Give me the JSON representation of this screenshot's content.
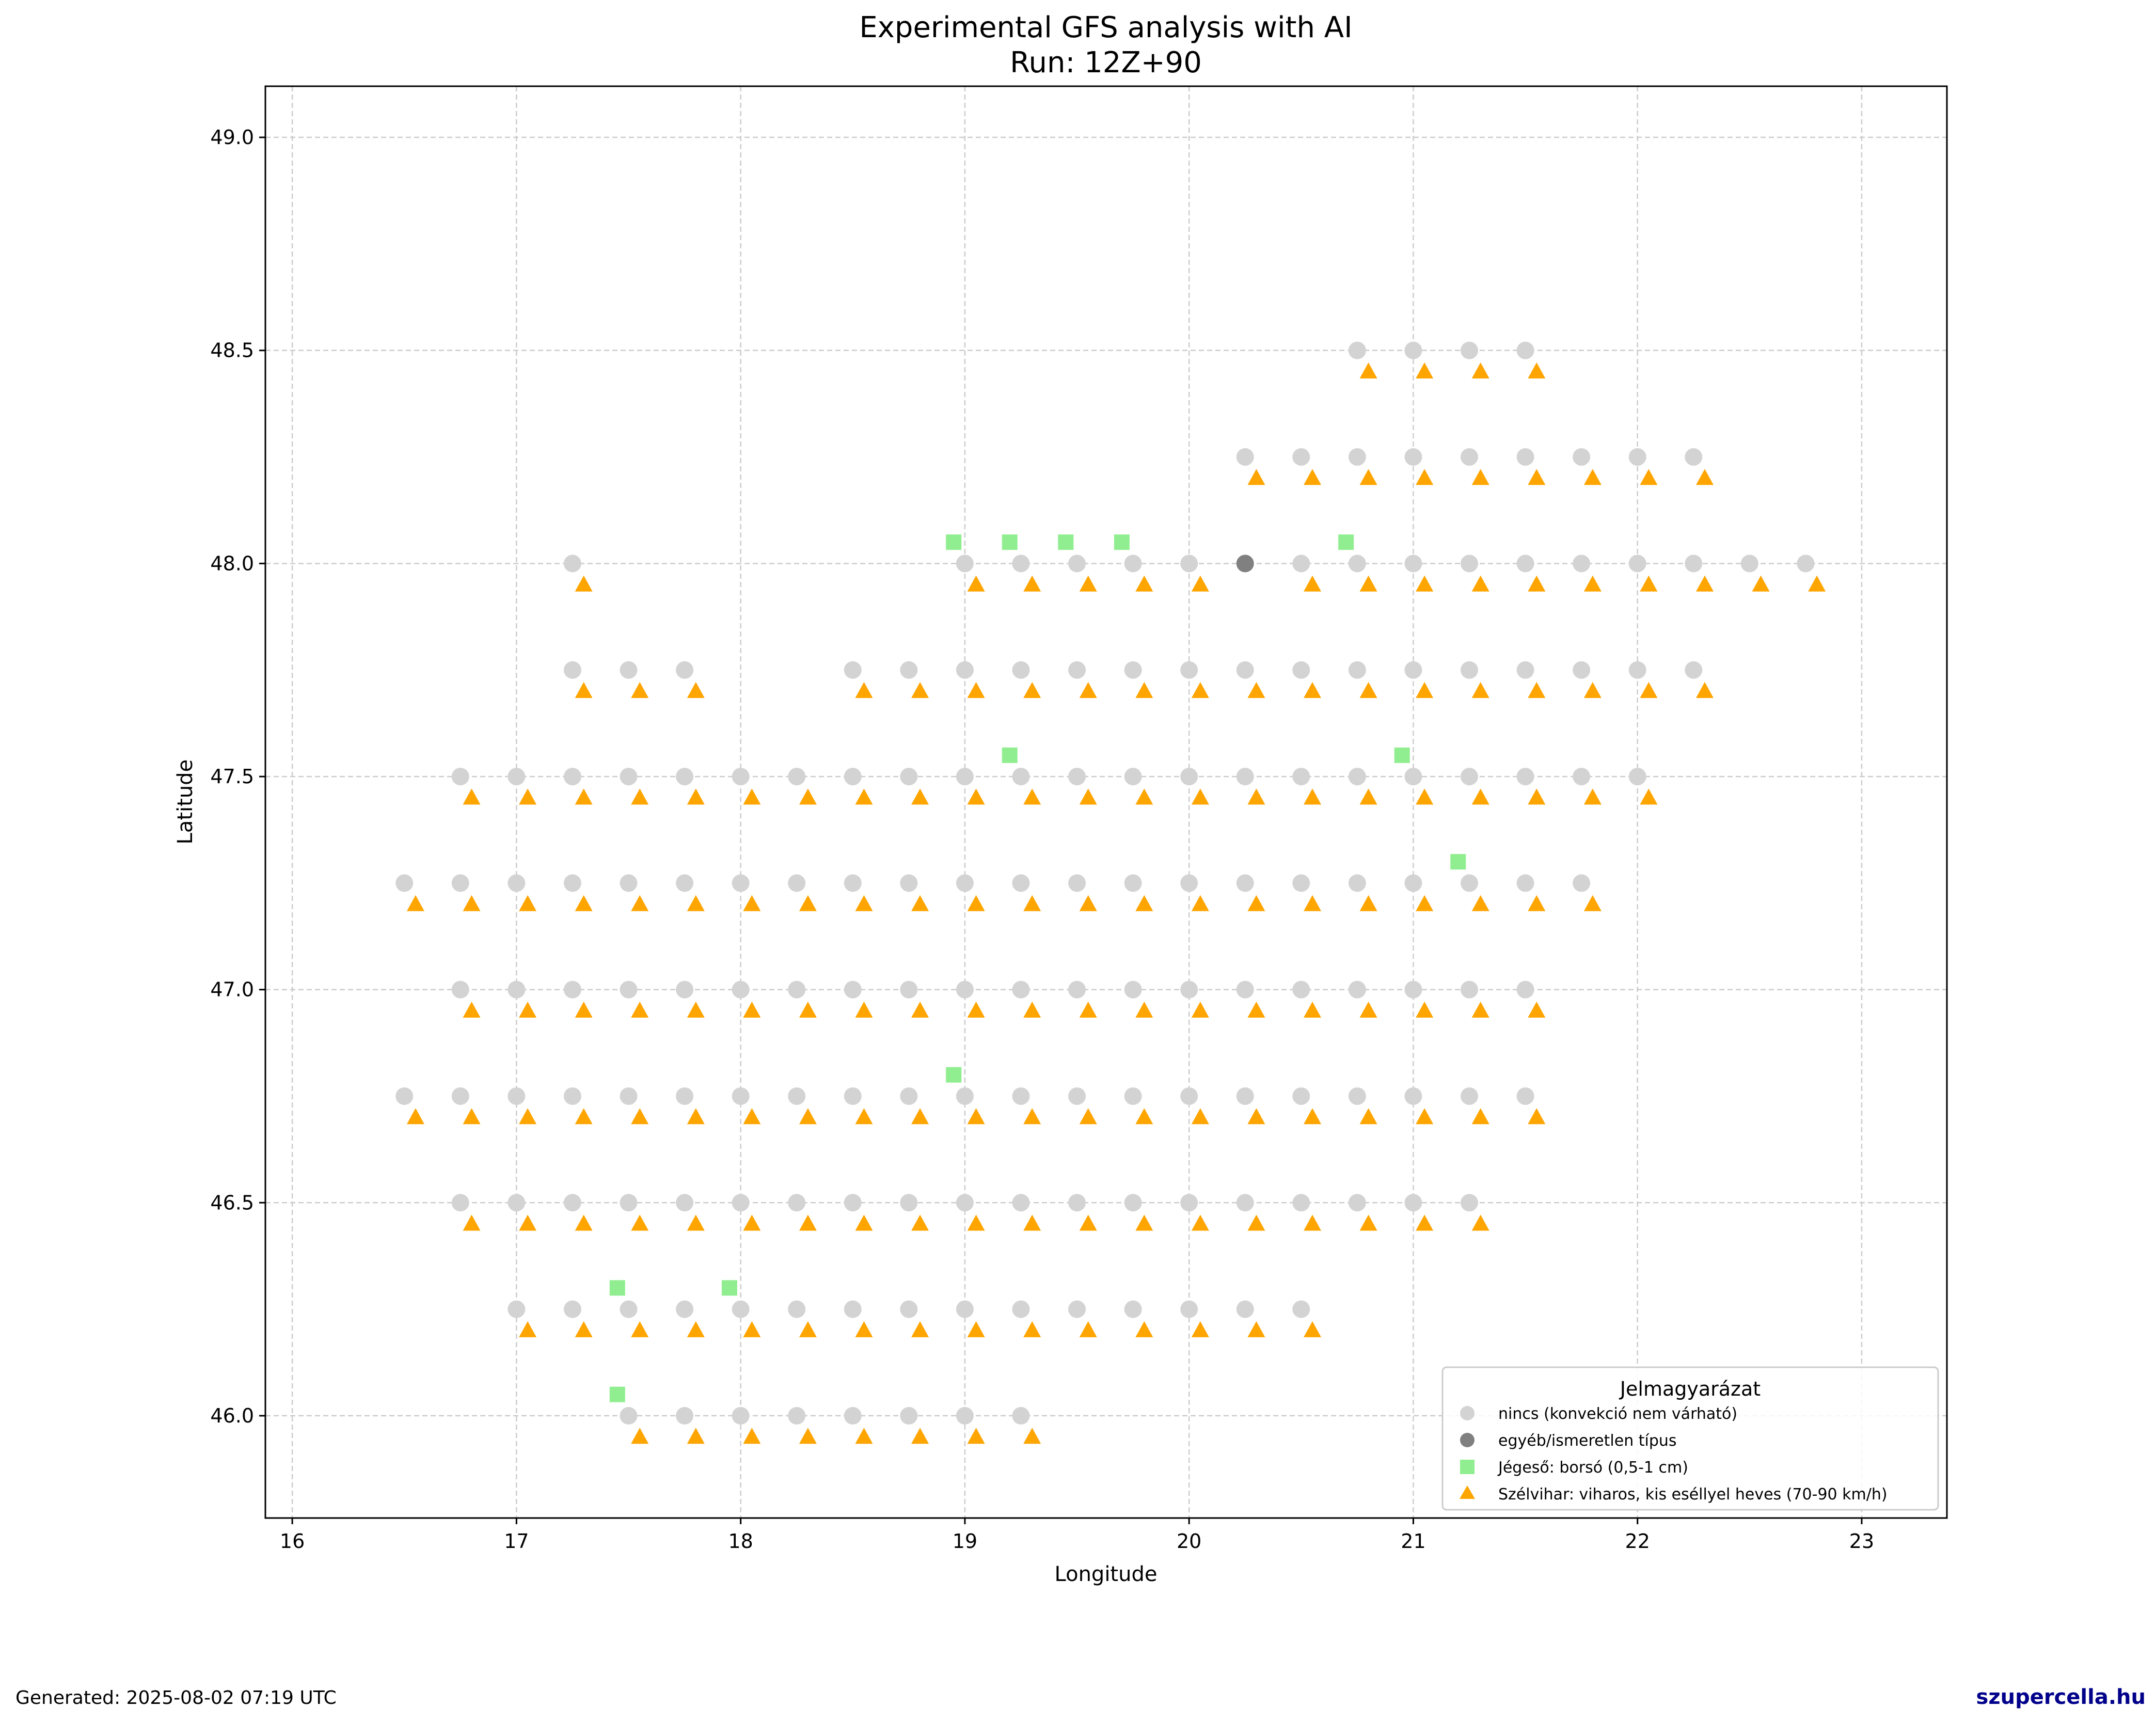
{
  "title_line1": "Experimental GFS analysis with AI",
  "title_line2": "Run: 12Z+90",
  "footer": {
    "generated": "Generated: 2025-08-02 07:19 UTC",
    "brand": "szupercella.hu"
  },
  "colors": {
    "nincs": "#d3d3d3",
    "egyeb": "#808080",
    "jeges": "#90ee90",
    "szel": "#ffa500",
    "grid": "#cccccc"
  },
  "chart_data": {
    "type": "scatter",
    "title": "Experimental GFS analysis with AI\nRun: 12Z+90",
    "xlabel": "Longitude",
    "ylabel": "Latitude",
    "xlim": [
      15.88,
      23.38
    ],
    "ylim": [
      45.76,
      49.12
    ],
    "xticks": [
      "16",
      "17",
      "18",
      "19",
      "20",
      "21",
      "22",
      "23"
    ],
    "yticks": [
      "46.0",
      "46.5",
      "47.0",
      "47.5",
      "48.0",
      "48.5",
      "49.0"
    ],
    "grid": true,
    "legend": {
      "title": "Jelmagyarázat",
      "placement": "bottom-right",
      "entries": [
        "nincs (konvekció nem várható)",
        "egyéb/ismeretlen típus",
        "Jégeső: borsó (0,5-1 cm)",
        "Szélvihar: viharos, kis eséllyel heves (70-90 km/h)"
      ]
    },
    "series": [
      {
        "name": "nincs (konvekció nem várható)",
        "marker": "circle",
        "rows": [
          {
            "lat": 48.5,
            "lons": [
              20.75,
              21.0,
              21.25,
              21.5
            ]
          },
          {
            "lat": 48.25,
            "lons": [
              20.25,
              20.5,
              20.75,
              21.0,
              21.25,
              21.5,
              21.75,
              22.0,
              22.25
            ]
          },
          {
            "lat": 48.0,
            "lons": [
              17.25,
              19.0,
              19.25,
              19.5,
              19.75,
              20.0,
              20.5,
              20.75,
              21.0,
              21.25,
              21.5,
              21.75,
              22.0,
              22.25,
              22.5,
              22.75
            ]
          },
          {
            "lat": 47.75,
            "lons": [
              17.25,
              17.5,
              17.75,
              18.5,
              18.75,
              19.0,
              19.25,
              19.5,
              19.75,
              20.0,
              20.25,
              20.5,
              20.75,
              21.0,
              21.25,
              21.5,
              21.75,
              22.0,
              22.25
            ]
          },
          {
            "lat": 47.5,
            "lons": [
              16.75,
              17.0,
              17.25,
              17.5,
              17.75,
              18.0,
              18.25,
              18.5,
              18.75,
              19.0,
              19.25,
              19.5,
              19.75,
              20.0,
              20.25,
              20.5,
              20.75,
              21.0,
              21.25,
              21.5,
              21.75,
              22.0
            ]
          },
          {
            "lat": 47.25,
            "lons": [
              16.5,
              16.75,
              17.0,
              17.25,
              17.5,
              17.75,
              18.0,
              18.25,
              18.5,
              18.75,
              19.0,
              19.25,
              19.5,
              19.75,
              20.0,
              20.25,
              20.5,
              20.75,
              21.0,
              21.25,
              21.5,
              21.75
            ]
          },
          {
            "lat": 47.0,
            "lons": [
              16.75,
              17.0,
              17.25,
              17.5,
              17.75,
              18.0,
              18.25,
              18.5,
              18.75,
              19.0,
              19.25,
              19.5,
              19.75,
              20.0,
              20.25,
              20.5,
              20.75,
              21.0,
              21.25,
              21.5
            ]
          },
          {
            "lat": 46.75,
            "lons": [
              16.5,
              16.75,
              17.0,
              17.25,
              17.5,
              17.75,
              18.0,
              18.25,
              18.5,
              18.75,
              19.0,
              19.25,
              19.5,
              19.75,
              20.0,
              20.25,
              20.5,
              20.75,
              21.0,
              21.25,
              21.5
            ]
          },
          {
            "lat": 46.5,
            "lons": [
              16.75,
              17.0,
              17.25,
              17.5,
              17.75,
              18.0,
              18.25,
              18.5,
              18.75,
              19.0,
              19.25,
              19.5,
              19.75,
              20.0,
              20.25,
              20.5,
              20.75,
              21.0,
              21.25
            ]
          },
          {
            "lat": 46.25,
            "lons": [
              17.0,
              17.25,
              17.5,
              17.75,
              18.0,
              18.25,
              18.5,
              18.75,
              19.0,
              19.25,
              19.5,
              19.75,
              20.0,
              20.25,
              20.5
            ]
          },
          {
            "lat": 46.0,
            "lons": [
              17.5,
              17.75,
              18.0,
              18.25,
              18.5,
              18.75,
              19.0,
              19.25
            ]
          }
        ]
      },
      {
        "name": "egyéb/ismeretlen típus",
        "marker": "circle",
        "rows": [
          {
            "lat": 48.0,
            "lons": [
              20.25
            ]
          }
        ]
      },
      {
        "name": "Jégeső: borsó (0,5-1 cm)",
        "marker": "square",
        "rows": [
          {
            "lat": 48.05,
            "lons": [
              18.95,
              19.2,
              19.45,
              19.7,
              20.7
            ]
          },
          {
            "lat": 47.55,
            "lons": [
              19.2,
              20.95
            ]
          },
          {
            "lat": 47.3,
            "lons": [
              21.2
            ]
          },
          {
            "lat": 46.8,
            "lons": [
              18.95
            ]
          },
          {
            "lat": 46.3,
            "lons": [
              17.45,
              17.95
            ]
          },
          {
            "lat": 46.05,
            "lons": [
              17.45
            ]
          }
        ]
      },
      {
        "name": "Szélvihar: viharos, kis eséllyel heves (70-90 km/h)",
        "marker": "triangle",
        "rows": [
          {
            "lat": 48.45,
            "lons": [
              20.8,
              21.05,
              21.3,
              21.55
            ]
          },
          {
            "lat": 48.2,
            "lons": [
              20.3,
              20.55,
              20.8,
              21.05,
              21.3,
              21.55,
              21.8,
              22.05,
              22.3
            ]
          },
          {
            "lat": 47.95,
            "lons": [
              17.3,
              19.05,
              19.3,
              19.55,
              19.8,
              20.05,
              20.55,
              20.8,
              21.05,
              21.3,
              21.55,
              21.8,
              22.05,
              22.3,
              22.55,
              22.8
            ]
          },
          {
            "lat": 47.7,
            "lons": [
              17.3,
              17.55,
              17.8,
              18.55,
              18.8,
              19.05,
              19.3,
              19.55,
              19.8,
              20.05,
              20.3,
              20.55,
              20.8,
              21.05,
              21.3,
              21.55,
              21.8,
              22.05,
              22.3
            ]
          },
          {
            "lat": 47.45,
            "lons": [
              16.8,
              17.05,
              17.3,
              17.55,
              17.8,
              18.05,
              18.3,
              18.55,
              18.8,
              19.05,
              19.3,
              19.55,
              19.8,
              20.05,
              20.3,
              20.55,
              20.8,
              21.05,
              21.3,
              21.55,
              21.8,
              22.05
            ]
          },
          {
            "lat": 47.2,
            "lons": [
              16.55,
              16.8,
              17.05,
              17.3,
              17.55,
              17.8,
              18.05,
              18.3,
              18.55,
              18.8,
              19.05,
              19.3,
              19.55,
              19.8,
              20.05,
              20.3,
              20.55,
              20.8,
              21.05,
              21.3,
              21.55,
              21.8
            ]
          },
          {
            "lat": 46.95,
            "lons": [
              16.8,
              17.05,
              17.3,
              17.55,
              17.8,
              18.05,
              18.3,
              18.55,
              18.8,
              19.05,
              19.3,
              19.55,
              19.8,
              20.05,
              20.3,
              20.55,
              20.8,
              21.05,
              21.3,
              21.55
            ]
          },
          {
            "lat": 46.7,
            "lons": [
              16.55,
              16.8,
              17.05,
              17.3,
              17.55,
              17.8,
              18.05,
              18.3,
              18.55,
              18.8,
              19.05,
              19.3,
              19.55,
              19.8,
              20.05,
              20.3,
              20.55,
              20.8,
              21.05,
              21.3,
              21.55
            ]
          },
          {
            "lat": 46.45,
            "lons": [
              16.8,
              17.05,
              17.3,
              17.55,
              17.8,
              18.05,
              18.3,
              18.55,
              18.8,
              19.05,
              19.3,
              19.55,
              19.8,
              20.05,
              20.3,
              20.55,
              20.8,
              21.05,
              21.3
            ]
          },
          {
            "lat": 46.2,
            "lons": [
              17.05,
              17.3,
              17.55,
              17.8,
              18.05,
              18.3,
              18.55,
              18.8,
              19.05,
              19.3,
              19.55,
              19.8,
              20.05,
              20.3,
              20.55
            ]
          },
          {
            "lat": 45.95,
            "lons": [
              17.55,
              17.8,
              18.05,
              18.3,
              18.55,
              18.8,
              19.05,
              19.3
            ]
          }
        ]
      }
    ]
  }
}
